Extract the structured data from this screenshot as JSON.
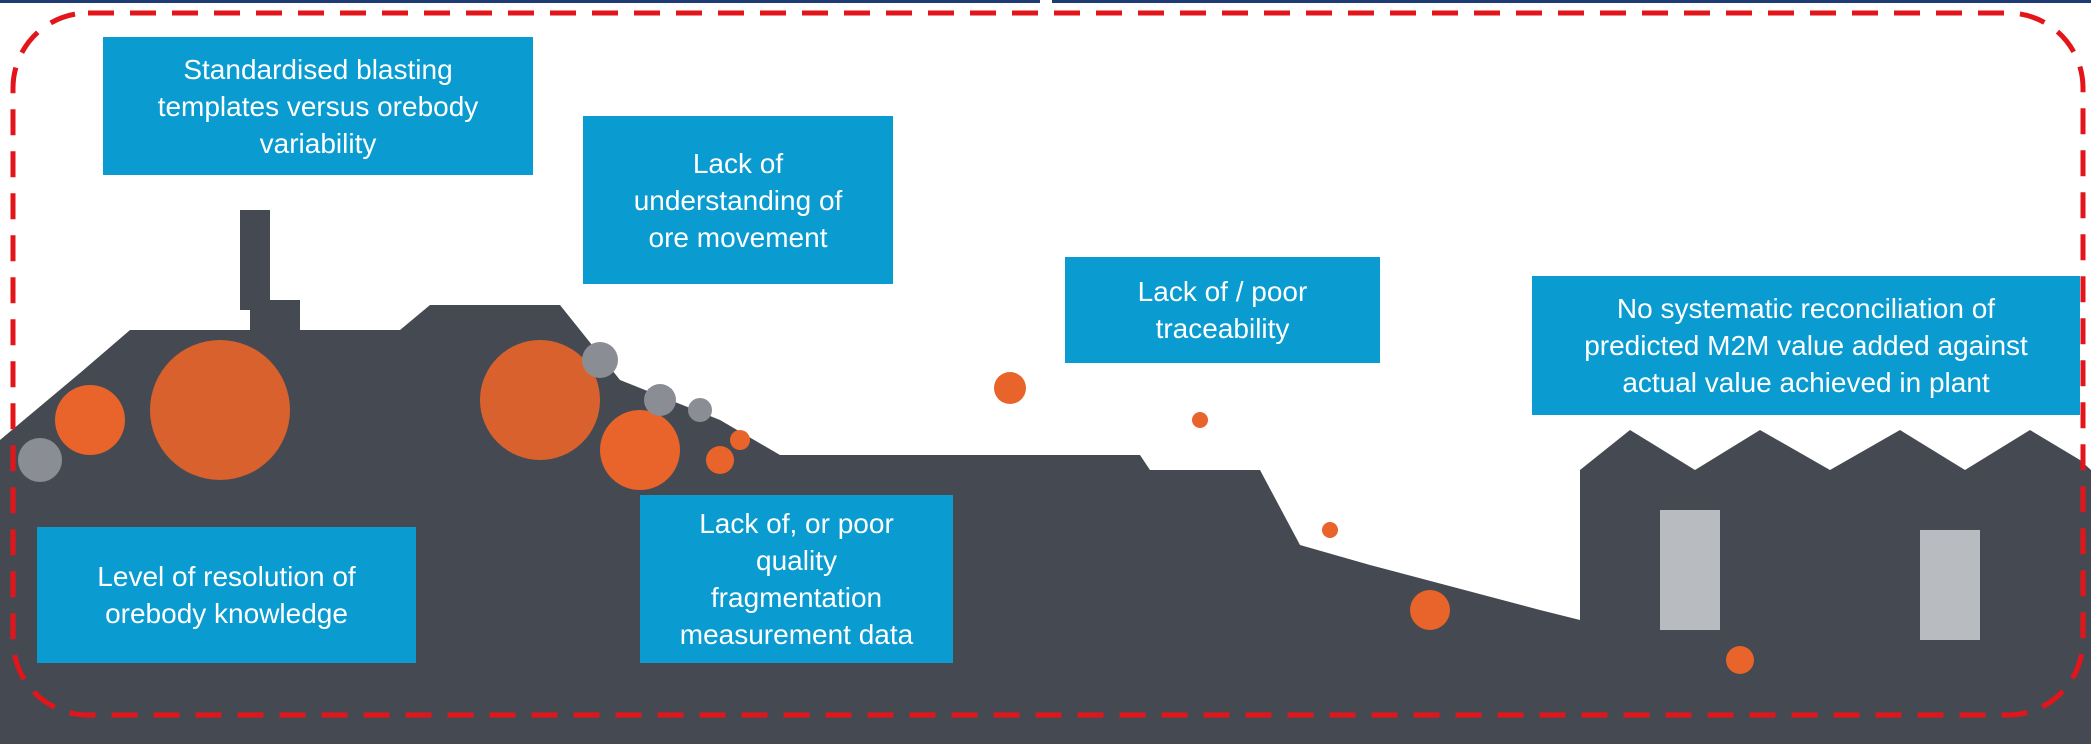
{
  "boxes": [
    {
      "lines": [
        "Standardised blasting",
        "templates versus orebody",
        "variability"
      ]
    },
    {
      "lines": [
        "Lack of",
        "understanding of",
        "ore movement"
      ]
    },
    {
      "lines": [
        "Lack of / poor",
        "traceability"
      ]
    },
    {
      "lines": [
        "No systematic reconciliation of",
        "predicted M2M value added against",
        "actual value achieved in plant"
      ]
    },
    {
      "lines": [
        "Level of resolution of",
        "orebody knowledge"
      ]
    },
    {
      "lines": [
        "Lack of, or poor",
        "quality",
        "fragmentation",
        "measurement data"
      ]
    }
  ]
}
